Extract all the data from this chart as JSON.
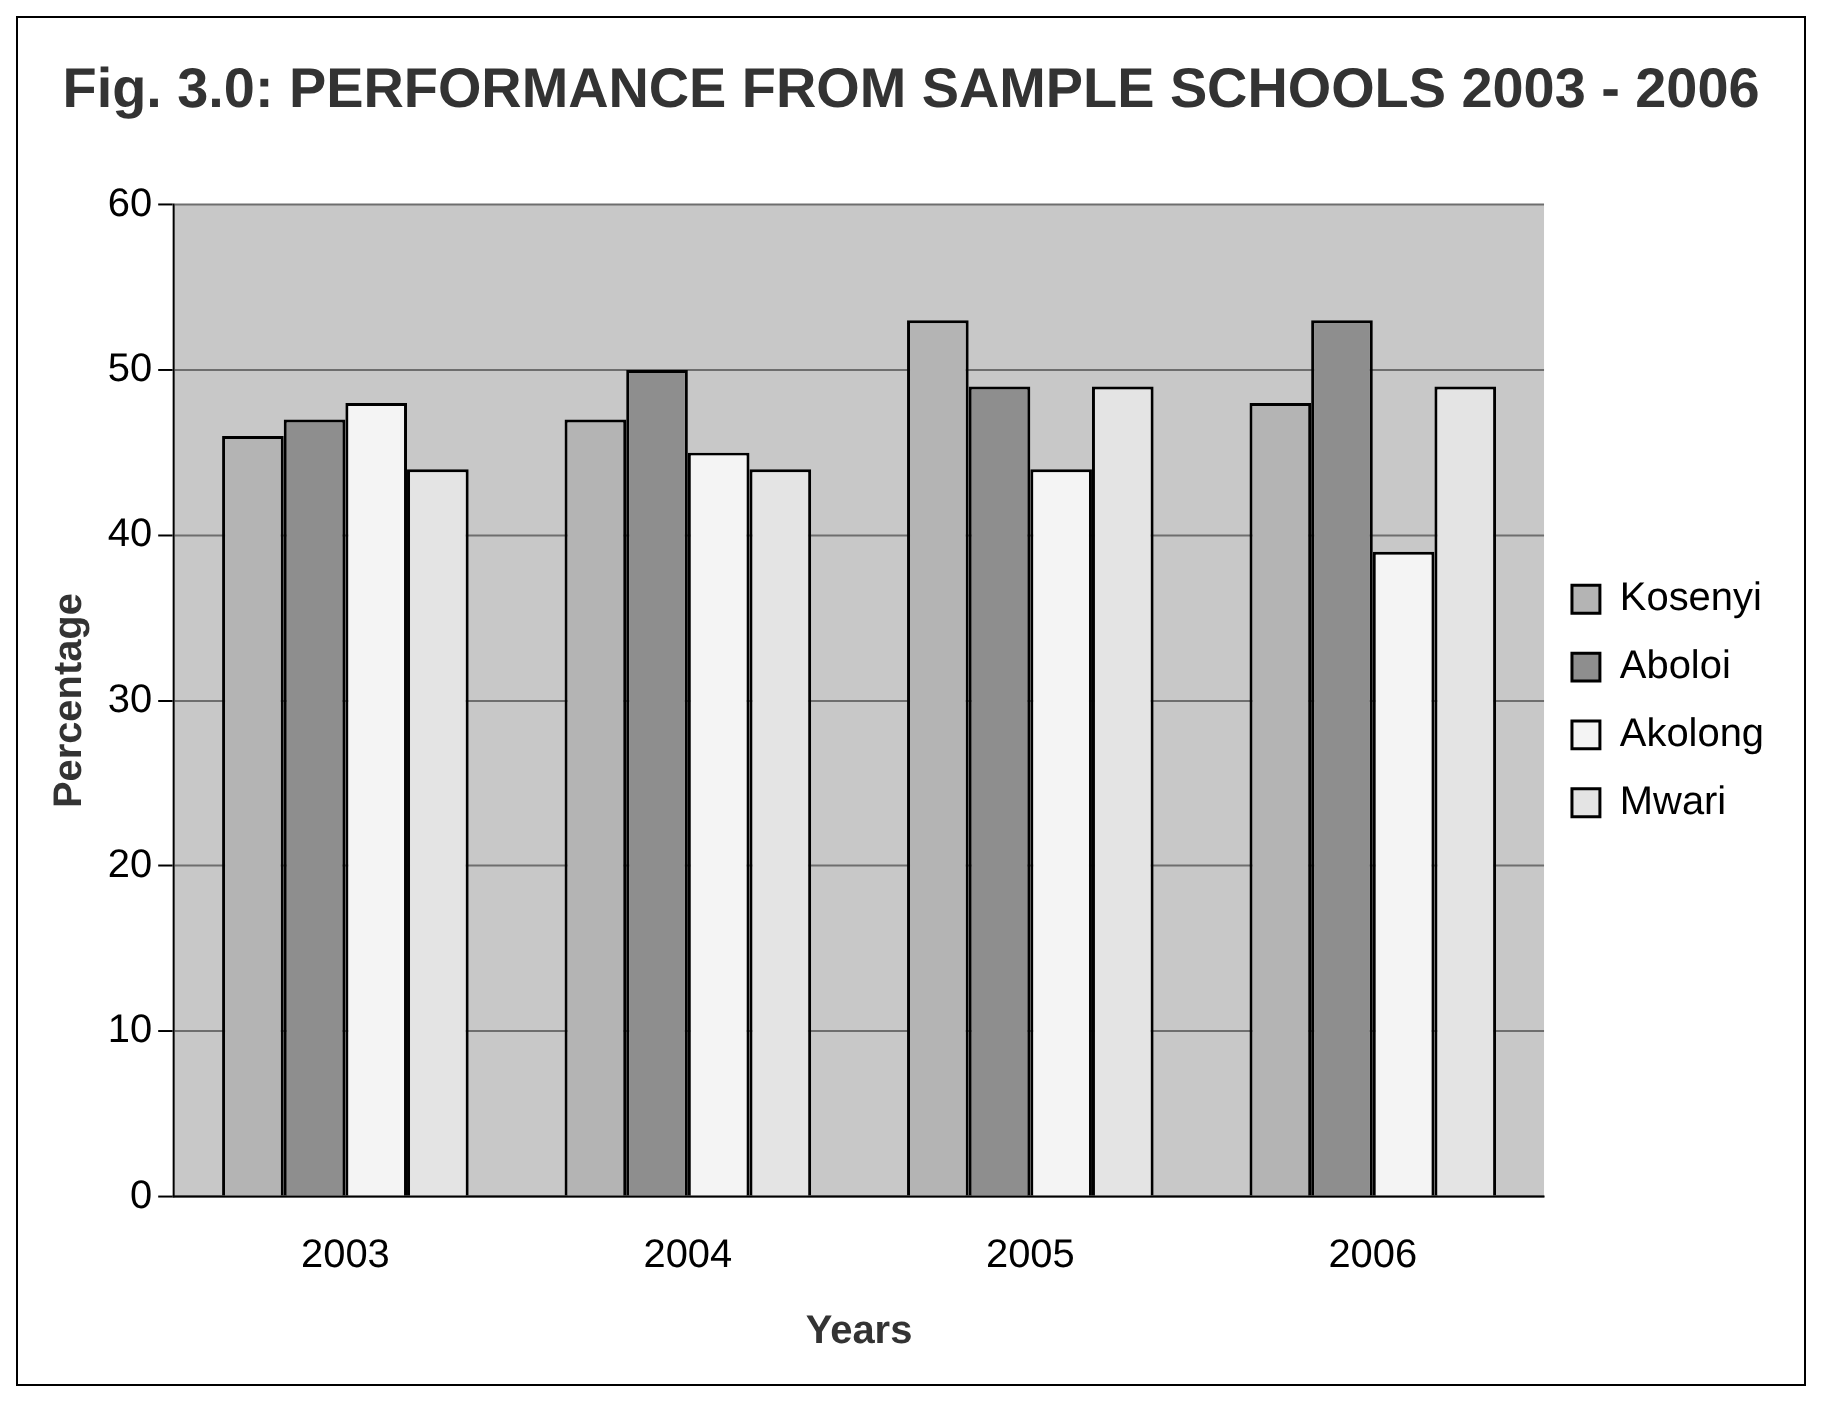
{
  "chart_data": {
    "type": "bar",
    "title": "Fig. 3.0: PERFORMANCE FROM SAMPLE SCHOOLS 2003 - 2006",
    "xlabel": "Years",
    "ylabel": "Percentage",
    "categories": [
      "2003",
      "2004",
      "2005",
      "2006"
    ],
    "series": [
      {
        "name": "Kosenyi",
        "color": "#b4b4b4",
        "values": [
          46,
          47,
          53,
          48
        ]
      },
      {
        "name": "Aboloi",
        "color": "#8e8e8e",
        "values": [
          47,
          50,
          49,
          53
        ]
      },
      {
        "name": "Akolong",
        "color": "#f4f4f4",
        "values": [
          48,
          45,
          44,
          39
        ]
      },
      {
        "name": "Mwari",
        "color": "#e4e4e4",
        "values": [
          44,
          44,
          49,
          49
        ]
      }
    ],
    "ylim": [
      0,
      60
    ],
    "yticks": [
      0,
      10,
      20,
      30,
      40,
      50,
      60
    ],
    "grid": "y",
    "legend": "right"
  }
}
